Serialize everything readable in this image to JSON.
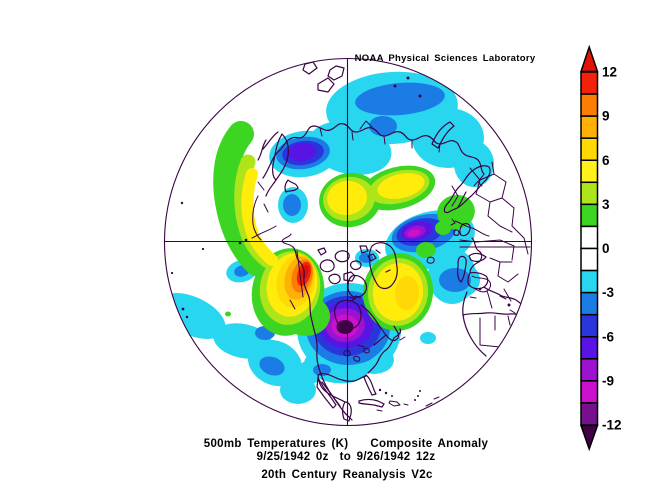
{
  "credit": "NOAA Physical Sciences Laboratory",
  "titles": {
    "line1": "500mb Temperatures (K)    Composite Anomaly",
    "line2": "9/25/1942 0z  to 9/26/1942 12z",
    "line3": "20th Century Reanalysis V2c"
  },
  "colorbar": {
    "ticks": [
      "12",
      "9",
      "6",
      "3",
      "0",
      "-3",
      "-6",
      "-9",
      "-12"
    ],
    "cell_colors": [
      "#F22109",
      "#FB7D04",
      "#FFB006",
      "#FFD806",
      "#FFF01E",
      "#AEE51A",
      "#3CD521",
      "#FFFFFF",
      "#FFFFFF",
      "#29D6F0",
      "#1B7CE6",
      "#2B35DC",
      "#5714E4",
      "#9C12D0",
      "#CB10CE",
      "#77108F"
    ],
    "arrow_top_color": "#E11405",
    "arrow_bottom_color": "#410146"
  },
  "palette": {
    "coastline": "#3A0345",
    "arrow_hot": "#D81405",
    "red": "#F22109",
    "orange": "#FB7D04",
    "amber": "#FFB006",
    "gold": "#FFD806",
    "yellow": "#FFEC0A",
    "yellow_green": "#AEE51A",
    "green": "#3CD521",
    "cyan": "#29D6F0",
    "blue": "#1B7CE6",
    "indigo": "#2B35DC",
    "violet": "#5714E4",
    "purple": "#9C12D0",
    "magenta": "#CB10CE",
    "dark_purple": "#77108F",
    "arrow_cold": "#410146"
  },
  "chart_data": {
    "type": "heatmap",
    "title": "500mb Temperatures (K)    Composite Anomaly",
    "subtitle": "9/25/1942 0z  to 9/26/1942 12z",
    "dataset": "20th Century Reanalysis V2c",
    "credit": "NOAA Physical Sciences Laboratory",
    "projection": "Northern Hemisphere polar stereographic",
    "units": "K",
    "legend_position": "right",
    "colorbar_tick_values": [
      12,
      9,
      6,
      3,
      0,
      -3,
      -6,
      -9,
      -12
    ],
    "colorbar_interval": 1.5,
    "colorbar_range_open_ended": true,
    "anomaly_centers": [
      {
        "region": "Gulf of Alaska / western North America",
        "sign": "positive",
        "peak_value": 12
      },
      {
        "region": "Hudson Bay / central North America",
        "sign": "negative",
        "peak_value": -12
      },
      {
        "region": "Greenland / Davis Strait",
        "sign": "positive",
        "peak_value": 7.5
      },
      {
        "region": "Arctic near pole",
        "sign": "positive",
        "peak_value": 6
      },
      {
        "region": "central Siberia / Arctic coast",
        "sign": "negative",
        "peak_value": -4.5
      },
      {
        "region": "northeast Siberia",
        "sign": "negative",
        "peak_value": -7.5
      },
      {
        "region": "central Asia / Caspian region",
        "sign": "negative",
        "peak_value": -10.5
      },
      {
        "region": "North Atlantic",
        "sign": "negative",
        "peak_value": -4.5
      },
      {
        "region": "North Pacific",
        "sign": "negative",
        "peak_value": -4.5
      },
      {
        "region": "Scandinavia / northern Europe",
        "sign": "positive",
        "peak_value": 3
      },
      {
        "region": "Bering Sea arc / northwest Pacific rim",
        "sign": "positive",
        "peak_value": 6
      },
      {
        "region": "southeastern United States",
        "sign": "negative",
        "peak_value": -4.5
      }
    ]
  }
}
